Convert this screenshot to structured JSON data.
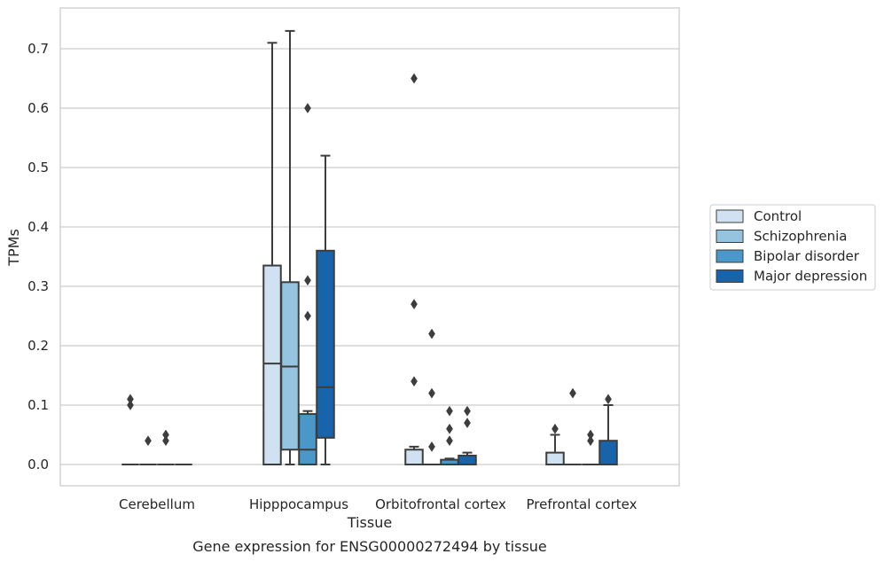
{
  "chart_data": {
    "type": "box",
    "title": "",
    "caption": "Gene expression for ENSG00000272494 by tissue",
    "xlabel": "Tissue",
    "ylabel": "TPMs",
    "ylim": [
      -0.035,
      0.77
    ],
    "yticks": [
      0.0,
      0.1,
      0.2,
      0.3,
      0.4,
      0.5,
      0.6,
      0.7
    ],
    "ytick_labels": [
      "0.0",
      "0.1",
      "0.2",
      "0.3",
      "0.4",
      "0.5",
      "0.6",
      "0.7"
    ],
    "grid": true,
    "legend_position": "right",
    "categories": [
      "Cerebellum",
      "Hipppocampus",
      "Orbitofrontal cortex",
      "Prefrontal cortex"
    ],
    "series": [
      {
        "name": "Control",
        "color": "#d0e1f2",
        "boxes": [
          {
            "q1": 0.0,
            "median": 0.0,
            "q3": 0.0,
            "whisker_low": 0.0,
            "whisker_high": 0.0,
            "outliers": [
              0.11,
              0.1
            ]
          },
          {
            "q1": 0.0,
            "median": 0.17,
            "q3": 0.335,
            "whisker_low": 0.0,
            "whisker_high": 0.71,
            "outliers": []
          },
          {
            "q1": 0.0,
            "median": 0.0,
            "q3": 0.025,
            "whisker_low": 0.0,
            "whisker_high": 0.03,
            "outliers": [
              0.65,
              0.27,
              0.14
            ]
          },
          {
            "q1": 0.0,
            "median": 0.0,
            "q3": 0.02,
            "whisker_low": 0.0,
            "whisker_high": 0.05,
            "outliers": [
              0.06
            ]
          }
        ]
      },
      {
        "name": "Schizophrenia",
        "color": "#94c4df",
        "boxes": [
          {
            "q1": 0.0,
            "median": 0.0,
            "q3": 0.0,
            "whisker_low": 0.0,
            "whisker_high": 0.0,
            "outliers": [
              0.04
            ]
          },
          {
            "q1": 0.025,
            "median": 0.165,
            "q3": 0.307,
            "whisker_low": 0.0,
            "whisker_high": 0.73,
            "outliers": []
          },
          {
            "q1": 0.0,
            "median": 0.0,
            "q3": 0.0,
            "whisker_low": 0.0,
            "whisker_high": 0.0,
            "outliers": [
              0.22,
              0.12,
              0.03
            ]
          },
          {
            "q1": 0.0,
            "median": 0.0,
            "q3": 0.0,
            "whisker_low": 0.0,
            "whisker_high": 0.0,
            "outliers": [
              0.12
            ]
          }
        ]
      },
      {
        "name": "Bipolar disorder",
        "color": "#4a98c9",
        "boxes": [
          {
            "q1": 0.0,
            "median": 0.0,
            "q3": 0.0,
            "whisker_low": 0.0,
            "whisker_high": 0.0,
            "outliers": [
              0.05,
              0.04
            ]
          },
          {
            "q1": 0.0,
            "median": 0.025,
            "q3": 0.085,
            "whisker_low": 0.0,
            "whisker_high": 0.09,
            "outliers": [
              0.6,
              0.31,
              0.25
            ]
          },
          {
            "q1": 0.0,
            "median": 0.0,
            "q3": 0.008,
            "whisker_low": 0.0,
            "whisker_high": 0.01,
            "outliers": [
              0.09,
              0.06,
              0.04
            ]
          },
          {
            "q1": 0.0,
            "median": 0.0,
            "q3": 0.0,
            "whisker_low": 0.0,
            "whisker_high": 0.0,
            "outliers": [
              0.05,
              0.04
            ]
          }
        ]
      },
      {
        "name": "Major depression",
        "color": "#1764ab",
        "boxes": [
          {
            "q1": 0.0,
            "median": 0.0,
            "q3": 0.0,
            "whisker_low": 0.0,
            "whisker_high": 0.0,
            "outliers": []
          },
          {
            "q1": 0.045,
            "median": 0.13,
            "q3": 0.36,
            "whisker_low": 0.0,
            "whisker_high": 0.52,
            "outliers": []
          },
          {
            "q1": 0.0,
            "median": 0.0,
            "q3": 0.015,
            "whisker_low": 0.0,
            "whisker_high": 0.02,
            "outliers": [
              0.09,
              0.07
            ]
          },
          {
            "q1": 0.0,
            "median": 0.0,
            "q3": 0.04,
            "whisker_low": 0.0,
            "whisker_high": 0.1,
            "outliers": [
              0.11
            ]
          }
        ]
      }
    ]
  }
}
